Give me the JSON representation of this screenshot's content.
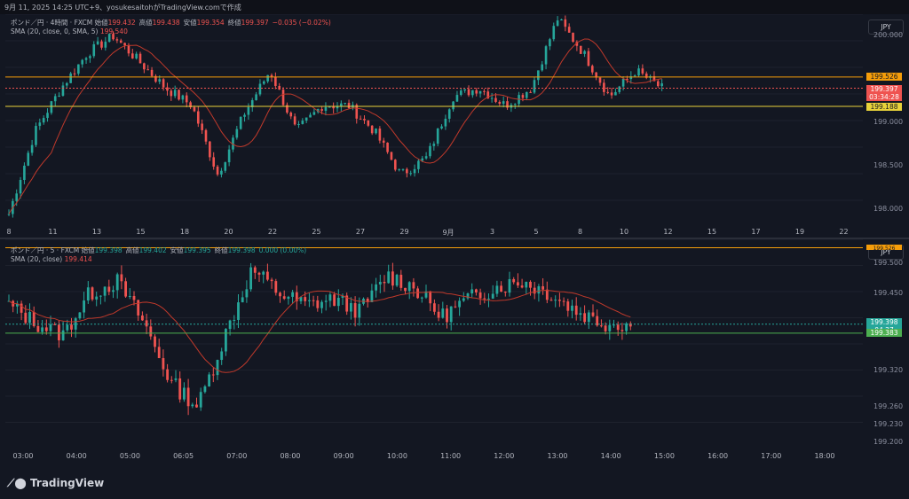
{
  "credit": "9月 11, 2025 14:25 UTC+9、yosukesaitohがTradingView.comで作成",
  "brand": "TradingView",
  "colors": {
    "up": "#26a69a",
    "down": "#ef5350",
    "sma": "#c0392b",
    "resistance": "#f59d0a",
    "support": "#e8d23a",
    "bg": "#131722"
  },
  "top_chart": {
    "symbol": "ポンド／円 · 4時間 · FXCM",
    "ohlc": [
      {
        "k": "始値",
        "v": "199.432"
      },
      {
        "k": "高値",
        "v": "199.438"
      },
      {
        "k": "安値",
        "v": "199.354"
      },
      {
        "k": "終値",
        "v": "199.397"
      },
      {
        "k": "",
        "v": "−0.035 (−0.02%)"
      }
    ],
    "sma_label": "SMA (20, close, 0, SMA, 5)",
    "sma_value": "199.540",
    "currency": "JPY",
    "y_ticks": [
      "200.000",
      "199.000",
      "198.500",
      "198.000"
    ],
    "price_tags": {
      "resistance": "199.526",
      "current": "199.397",
      "countdown": "03:34:28",
      "support": "199.188"
    },
    "x_ticks": [
      "8",
      "11",
      "13",
      "15",
      "18",
      "20",
      "22",
      "25",
      "27",
      "29",
      "9月",
      "3",
      "5",
      "8",
      "10",
      "12",
      "15",
      "17",
      "19",
      "22"
    ],
    "chart_data": {
      "type": "candlestick",
      "ylim": [
        197.8,
        200.25
      ],
      "close_first": 197.95,
      "close_last": 199.397,
      "resistance": 199.526,
      "support": 199.188
    }
  },
  "bottom_chart": {
    "symbol": "ポンド／円 · 5 · FXCM",
    "ohlc": [
      {
        "k": "始値",
        "v": "199.398"
      },
      {
        "k": "高値",
        "v": "199.402"
      },
      {
        "k": "安値",
        "v": "199.395"
      },
      {
        "k": "終値",
        "v": "199.398"
      },
      {
        "k": "",
        "v": "0.000 (0.00%)"
      }
    ],
    "sma_label": "SMA (20, close)",
    "sma_value": "199.414",
    "currency": "JPY",
    "y_ticks": [
      "199.500",
      "199.450",
      "199.320",
      "199.260",
      "199.230",
      "199.200"
    ],
    "price_tags": {
      "current": "199.398",
      "countdown": "04:27",
      "support": "199.383",
      "resistance": "199.526"
    },
    "x_ticks": [
      "03:00",
      "04:00",
      "05:00",
      "06:05",
      "07:00",
      "08:00",
      "09:00",
      "10:00",
      "11:00",
      "12:00",
      "13:00",
      "14:00",
      "15:00",
      "16:00",
      "17:00",
      "18:00"
    ],
    "chart_data": {
      "type": "candlestick",
      "ylim": [
        199.19,
        199.54
      ],
      "close_first": 199.43,
      "close_last": 199.398,
      "support": 199.383
    }
  }
}
